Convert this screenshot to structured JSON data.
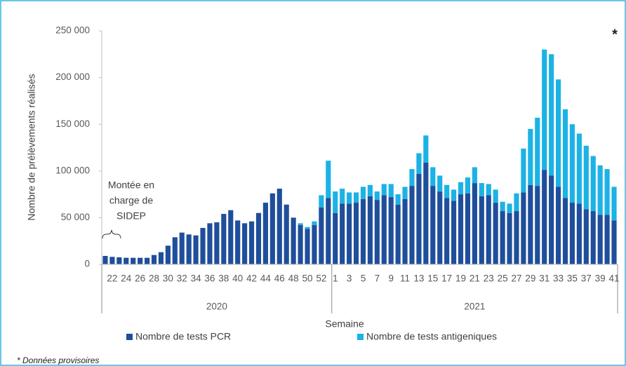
{
  "chart_data": {
    "type": "stacked-bar",
    "y_label": "Nombre de prélèvements réalisés",
    "x_label": "Semaine",
    "annotation": [
      "Montée en",
      "charge de",
      "SIDEP"
    ],
    "corner_mark": "*",
    "footnote": "* Données provisoires",
    "groups": [
      {
        "label": "2020",
        "categories": [
          null,
          "22",
          null,
          "24",
          null,
          "26",
          null,
          "28",
          null,
          "30",
          null,
          "32",
          null,
          "34",
          null,
          "36",
          null,
          "38",
          null,
          "40",
          null,
          "42",
          null,
          "44",
          null,
          "46",
          null,
          "48",
          null,
          "50",
          null,
          "52",
          null
        ]
      },
      {
        "label": "2021",
        "categories": [
          "1",
          null,
          "3",
          null,
          "5",
          null,
          "7",
          null,
          "9",
          null,
          "11",
          null,
          "13",
          null,
          "15",
          null,
          "17",
          null,
          "19",
          null,
          "21",
          null,
          "23",
          null,
          "25",
          null,
          "27",
          null,
          "29",
          null,
          "31",
          null,
          "33",
          null,
          "35",
          null,
          "37",
          null,
          "39",
          null,
          "41"
        ]
      }
    ],
    "series": [
      {
        "name": "Nombre de tests PCR",
        "color": "#1f4e9a",
        "values": [
          9000,
          8000,
          7500,
          7000,
          7000,
          7000,
          7000,
          10000,
          13000,
          20000,
          29000,
          34000,
          32000,
          31000,
          39000,
          44000,
          45000,
          54000,
          58000,
          47000,
          44000,
          46000,
          55000,
          66000,
          76000,
          81000,
          64000,
          50000,
          42000,
          38000,
          42000,
          61000,
          71000,
          55000,
          65000,
          65000,
          66000,
          70000,
          73000,
          69000,
          74000,
          72000,
          64000,
          70000,
          84000,
          97000,
          109000,
          84000,
          78000,
          71000,
          68000,
          75000,
          76000,
          87000,
          73000,
          74000,
          66000,
          57000,
          55000,
          57000,
          77000,
          85000,
          84000,
          101000,
          95000,
          83000,
          71000,
          66000,
          65000,
          59000,
          57000,
          53000,
          53000,
          47000
        ]
      },
      {
        "name": "Nombre de tests antigeniques",
        "color": "#1cb2e6",
        "values": [
          0,
          0,
          0,
          0,
          0,
          0,
          0,
          0,
          0,
          0,
          0,
          0,
          0,
          0,
          0,
          0,
          0,
          0,
          0,
          0,
          0,
          0,
          0,
          0,
          0,
          0,
          0,
          0,
          2000,
          2000,
          4000,
          13000,
          40000,
          23000,
          16000,
          12000,
          11000,
          13000,
          12000,
          9000,
          12000,
          14000,
          11000,
          13000,
          18000,
          22000,
          29000,
          20000,
          17000,
          14000,
          12000,
          13000,
          17000,
          17000,
          14000,
          12000,
          14000,
          10000,
          10000,
          19000,
          47000,
          60000,
          73000,
          129000,
          130000,
          115000,
          95000,
          84000,
          75000,
          68000,
          59000,
          53000,
          49000,
          36000
        ]
      }
    ],
    "ylim": [
      0,
      250000
    ],
    "yticks": [
      0,
      {
        "value": 50000,
        "label": "50 000"
      },
      {
        "value": 100000,
        "label": "100 000"
      },
      {
        "value": 150000,
        "label": "150 000"
      },
      {
        "value": 200000,
        "label": "200 000"
      },
      {
        "value": 250000,
        "label": "250 000"
      }
    ]
  }
}
